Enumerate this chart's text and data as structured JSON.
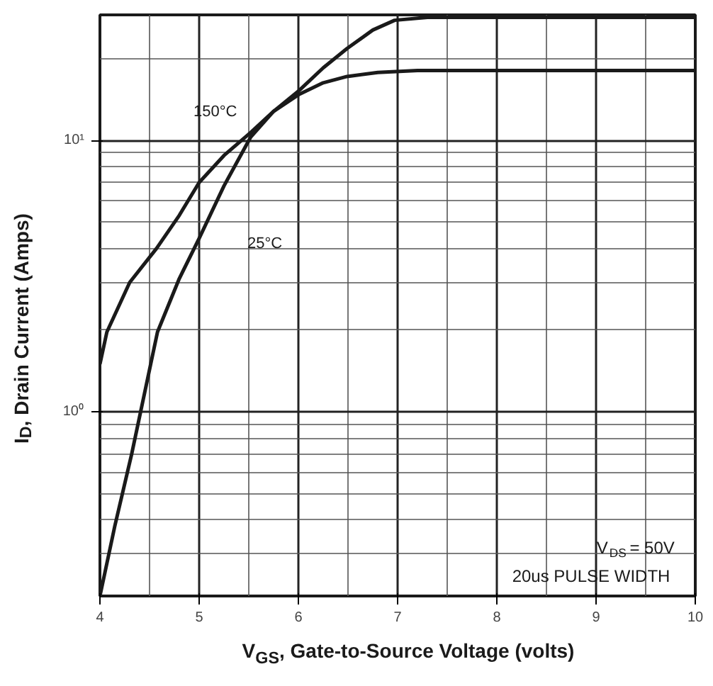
{
  "chart_data": {
    "type": "line",
    "xlabel": "V$_{GS}$, Gate-to-Source Voltage (volts)",
    "ylabel": "I$_{D}$, Drain Current (Amps)",
    "log": "y",
    "grid": true,
    "legend": false,
    "marker": "none",
    "line_style": "solid",
    "xlim": [
      4,
      10
    ],
    "xticks": [
      4,
      5,
      6,
      7,
      8,
      9,
      10
    ],
    "ylim": [
      0.21,
      29
    ],
    "yticks": [
      {
        "value": 1,
        "label": "10⁰"
      },
      {
        "value": 10,
        "label": "10¹"
      }
    ],
    "series": [
      {
        "name": "150°C",
        "color": "#1a1a1a",
        "x": [
          4.0,
          4.07,
          4.3,
          4.57,
          4.8,
          5.0,
          5.25,
          5.52,
          5.75,
          6.01,
          6.25,
          6.49,
          6.8,
          7.2,
          8,
          9,
          10
        ],
        "values": [
          1.5,
          1.97,
          3.0,
          4.0,
          5.3,
          7.0,
          8.8,
          10.7,
          12.8,
          14.8,
          16.3,
          17.2,
          17.8,
          18.1,
          18.1,
          18.1,
          18.1
        ]
      },
      {
        "name": "25°C",
        "color": "#1a1a1a",
        "x": [
          4.0,
          4.15,
          4.32,
          4.58,
          4.8,
          5.0,
          5.25,
          5.52,
          5.75,
          6.01,
          6.25,
          6.49,
          6.75,
          6.97,
          7.3,
          8,
          9,
          10
        ],
        "values": [
          0.21,
          0.38,
          0.7,
          1.97,
          3.1,
          4.36,
          6.8,
          10.3,
          12.8,
          15.3,
          18.5,
          21.8,
          25.5,
          27.7,
          28.4,
          28.4,
          28.4,
          28.4
        ]
      }
    ],
    "annotations": [
      "V$_{DS}$ = 50V",
      "20us PULSE WIDTH"
    ]
  }
}
